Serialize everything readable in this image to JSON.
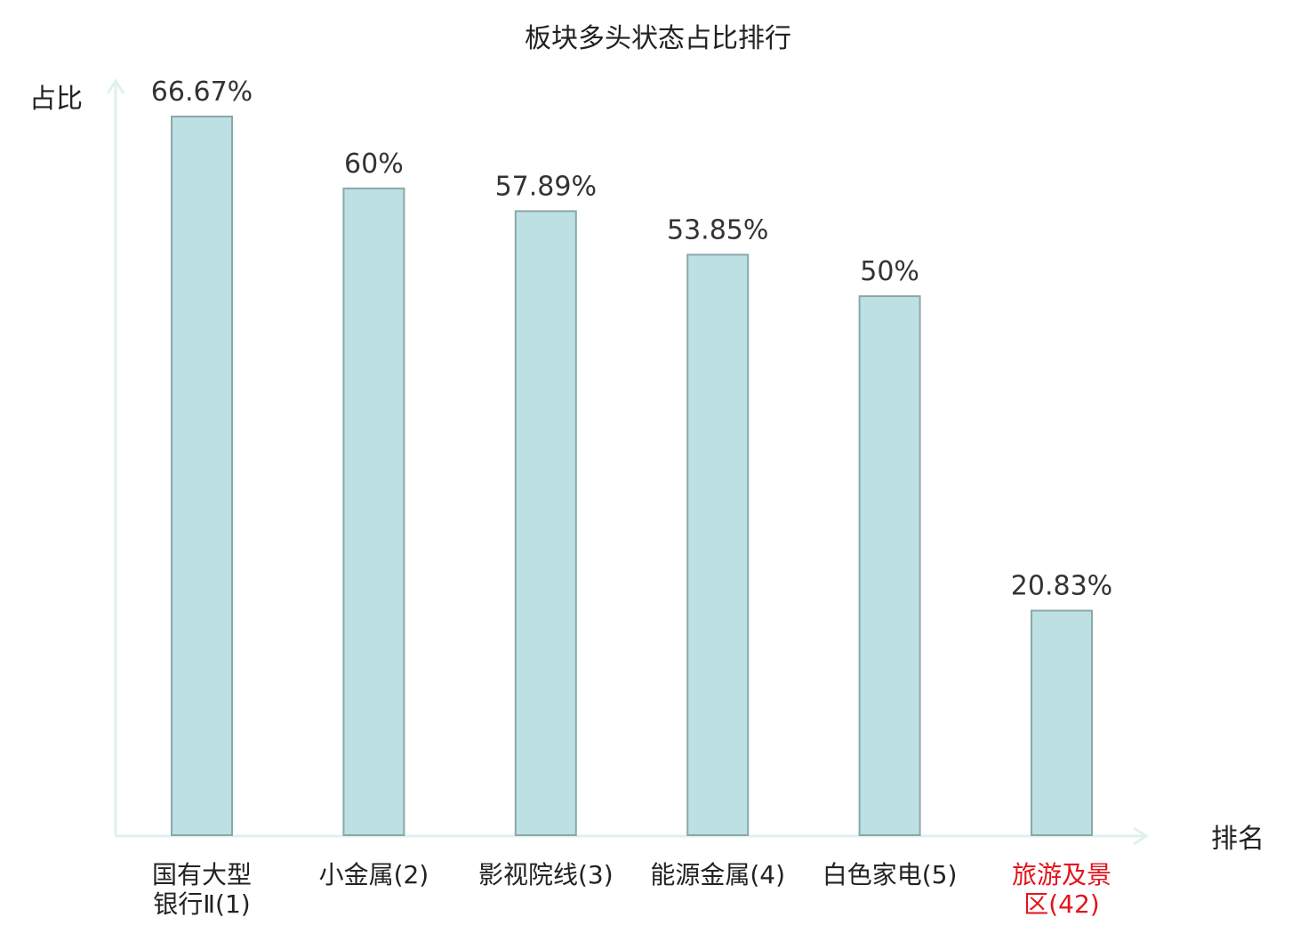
{
  "chart_data": {
    "type": "bar",
    "title": "板块多头状态占比排行",
    "ylabel": "占比",
    "xlabel": "排名",
    "ylim": [
      0,
      66.67
    ],
    "grid": false,
    "categories": [
      {
        "lines": [
          "国有大型",
          "银行Ⅱ(1)"
        ],
        "highlight": false
      },
      {
        "lines": [
          "小金属(2)"
        ],
        "highlight": false
      },
      {
        "lines": [
          "影视院线(3)"
        ],
        "highlight": false
      },
      {
        "lines": [
          "能源金属(4)"
        ],
        "highlight": false
      },
      {
        "lines": [
          "白色家电(5)"
        ],
        "highlight": false
      },
      {
        "lines": [
          "旅游及景",
          "区(42)"
        ],
        "highlight": true
      }
    ],
    "values": [
      66.67,
      60,
      57.89,
      53.85,
      50,
      20.83
    ],
    "value_labels": [
      "66.67%",
      "60%",
      "57.89%",
      "53.85%",
      "50%",
      "20.83%"
    ],
    "colors": {
      "bar_fill": "#bde0e2",
      "bar_stroke": "#8aa8aa",
      "axis": "#dff1ee",
      "highlight_label": "#e3141d"
    }
  }
}
